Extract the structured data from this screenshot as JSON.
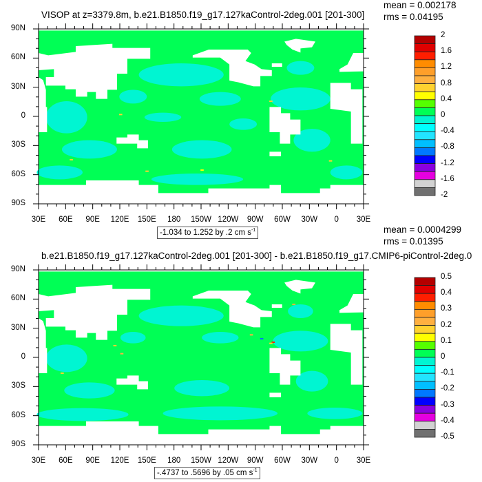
{
  "chart_data": [
    {
      "type": "heatmap",
      "title": "VISOP at z=3379.8m, b.e21.B1850.f19_g17.127kaControl-2deg.001 [201-300]",
      "mean_label": "mean = 0.002178",
      "rms_label": "rms = 0.04195",
      "lat_ticks": [
        "90N",
        "60N",
        "30N",
        "0",
        "30S",
        "60S",
        "90S"
      ],
      "lon_ticks": [
        "30E",
        "60E",
        "90E",
        "120E",
        "150E",
        "180",
        "150W",
        "120W",
        "90W",
        "60W",
        "30W",
        "0",
        "30E"
      ],
      "colorbar_labels": [
        "2",
        "1.6",
        "1.2",
        "0.8",
        "0.4",
        "0",
        "-0.4",
        "-0.8",
        "-1.2",
        "-1.6",
        "-2"
      ],
      "colorbar_range": [
        -2,
        2
      ],
      "colorbar_step": 0.2,
      "contour_info": {
        "text": "-1.034 to 1.252 by .2 cm s",
        "exponent": "-1"
      },
      "dominant_colors": {
        "near_zero_positive": "#00ff55",
        "near_zero_negative": "#00f5d2",
        "land": "#ffffff"
      }
    },
    {
      "type": "heatmap",
      "title": "b.e21.B1850.f19_g17.127kaControl-2deg.001 [201-300] - b.e21.B1850.f19_g17.CMIP6-piControl-2deg.0",
      "mean_label": "mean = 0.0004299",
      "rms_label": "rms = 0.01395",
      "lat_ticks": [
        "90N",
        "60N",
        "30N",
        "0",
        "30S",
        "60S",
        "90S"
      ],
      "lon_ticks": [
        "30E",
        "60E",
        "90E",
        "120E",
        "150E",
        "180",
        "150W",
        "120W",
        "90W",
        "60W",
        "30W",
        "0",
        "30E"
      ],
      "colorbar_labels": [
        "0.5",
        "0.4",
        "0.3",
        "0.2",
        "0.1",
        "0",
        "-0.1",
        "-0.2",
        "-0.3",
        "-0.4",
        "-0.5"
      ],
      "colorbar_range": [
        -0.5,
        0.5
      ],
      "colorbar_step": 0.05,
      "contour_info": {
        "text": "-.4737 to .5696 by .05 cm s",
        "exponent": "-1"
      },
      "dominant_colors": {
        "near_zero_positive": "#00ff55",
        "near_zero_negative": "#00f5d2",
        "land": "#ffffff"
      }
    }
  ],
  "colorbar_colors": [
    "#b40000",
    "#e00000",
    "#ff1e00",
    "#ff8c00",
    "#ff9f2a",
    "#ffb040",
    "#ffd230",
    "#ffff00",
    "#55ff00",
    "#00ff55",
    "#00f5d2",
    "#00ffff",
    "#22e4ff",
    "#00bfff",
    "#0078ff",
    "#0000ff",
    "#8a00e0",
    "#e600e0",
    "#d2d2d2",
    "#707070"
  ]
}
